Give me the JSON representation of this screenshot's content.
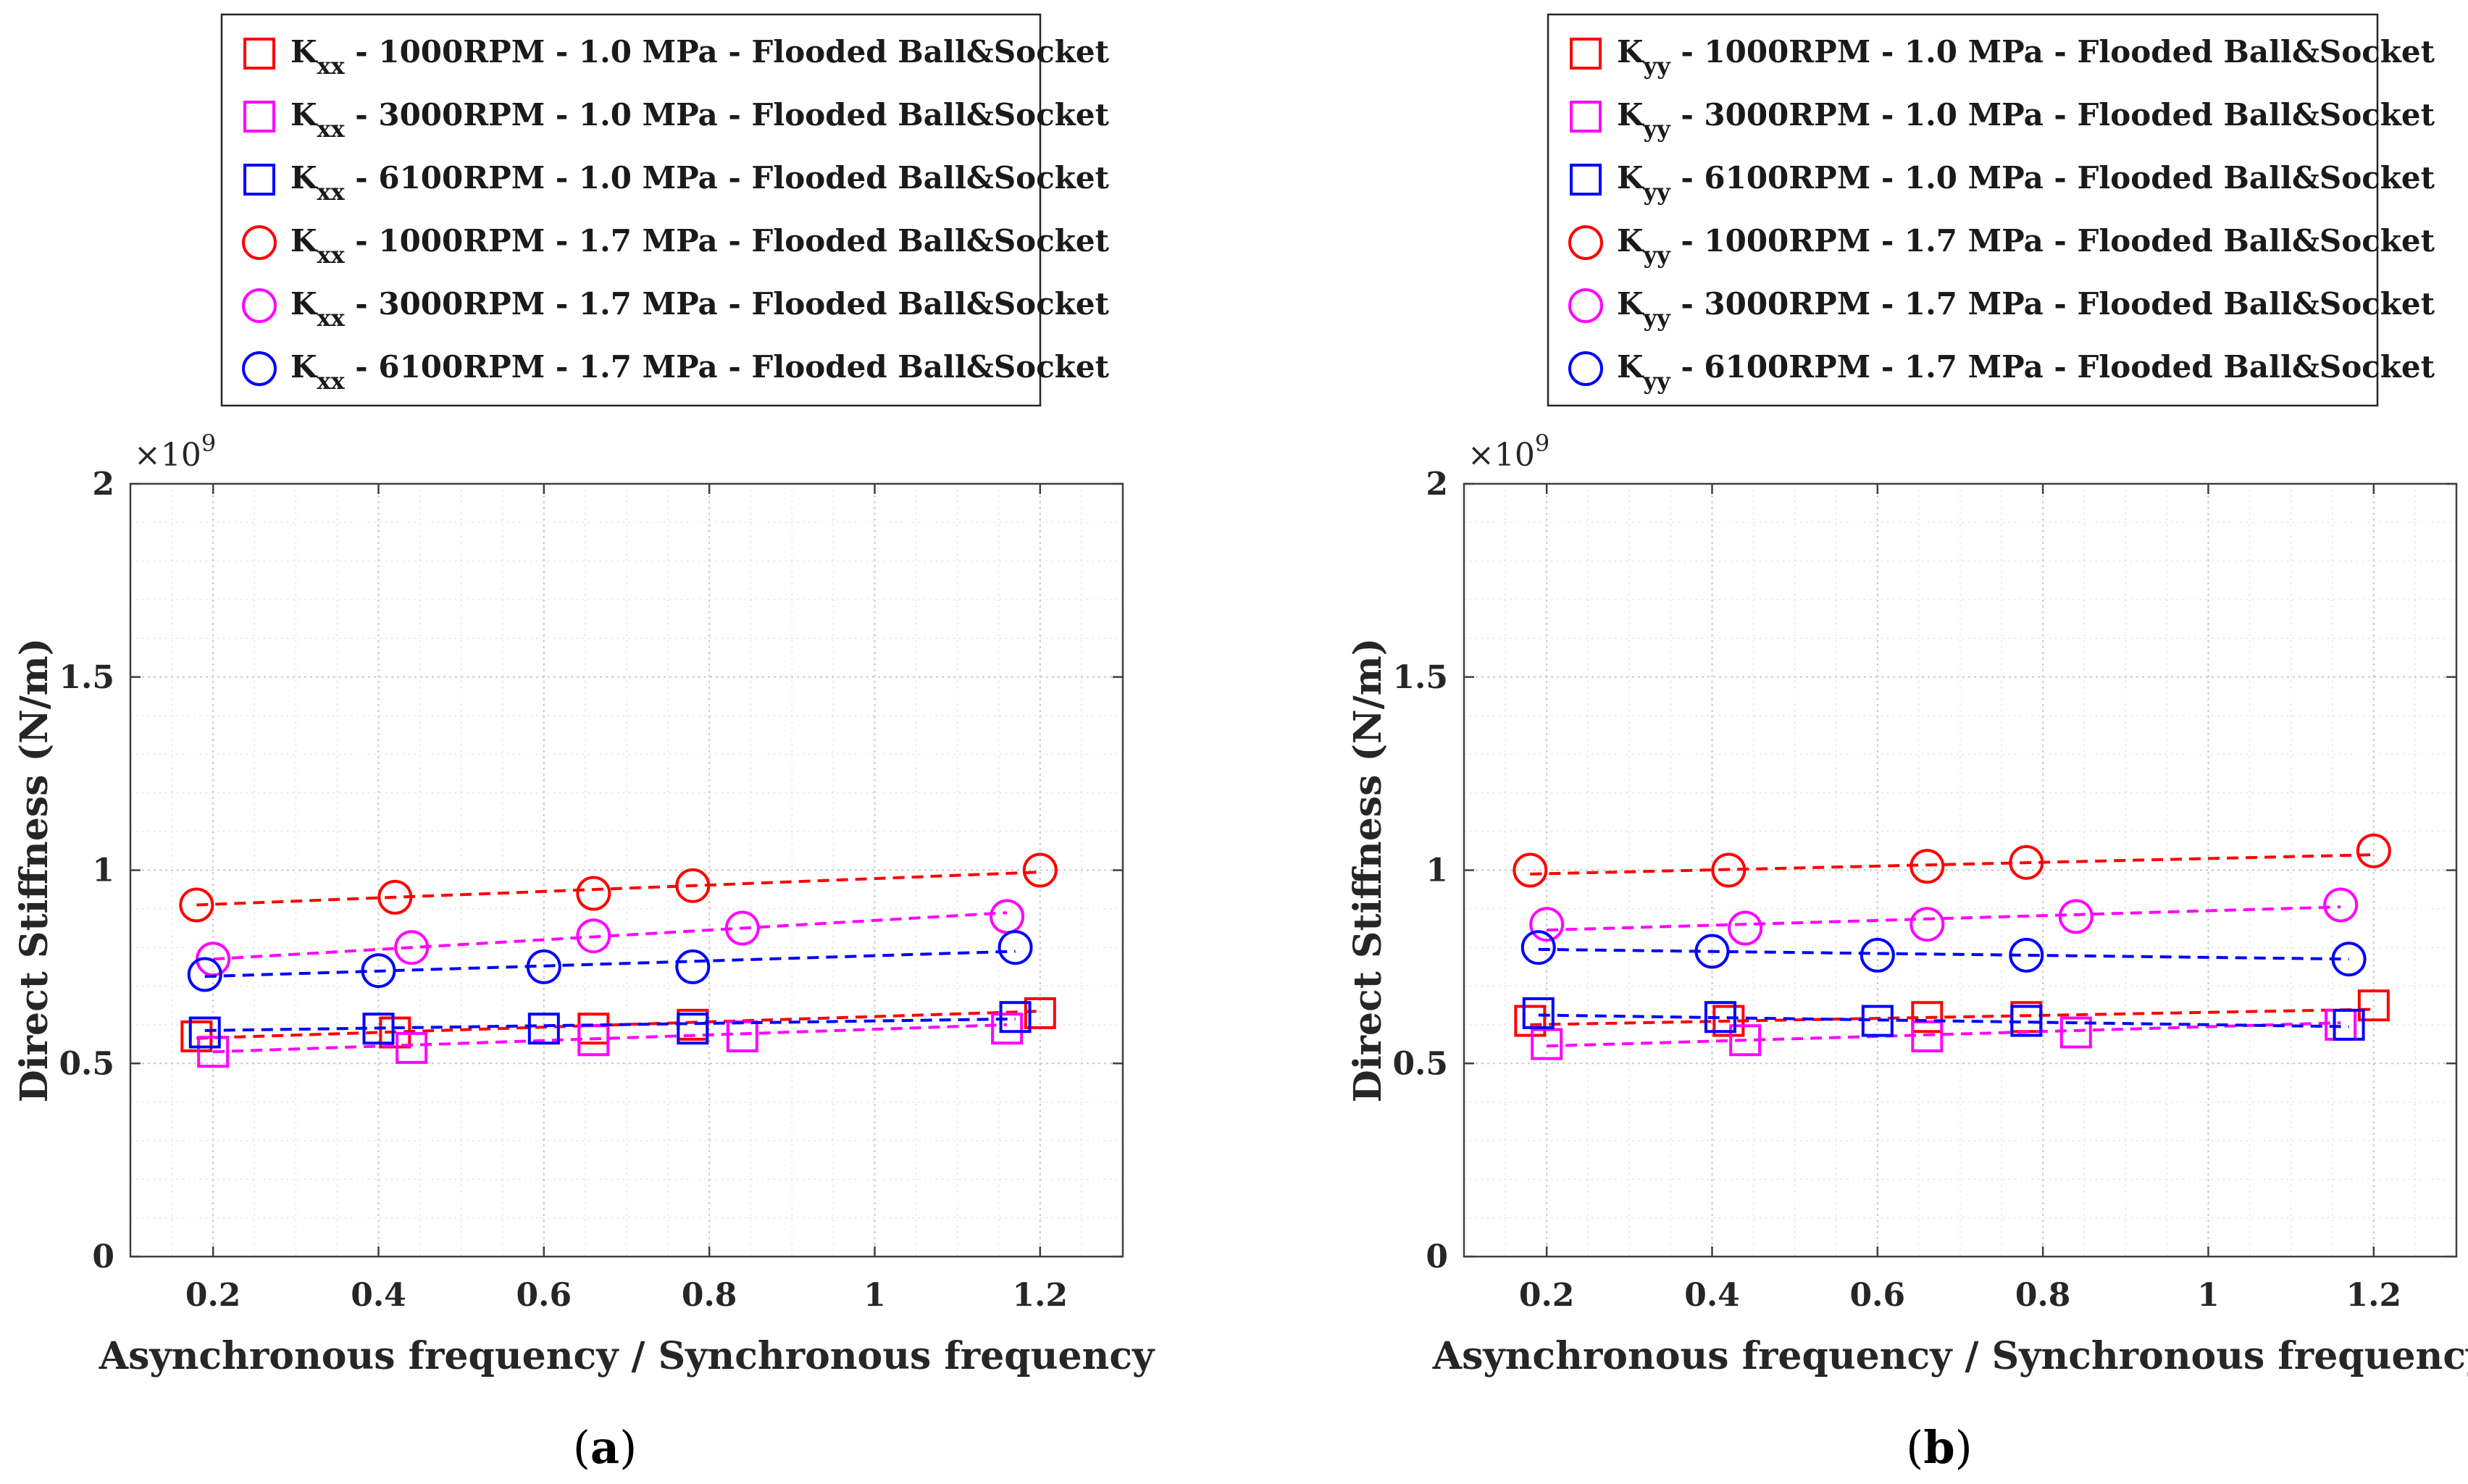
{
  "chart_data": [
    {
      "type": "scatter",
      "panel_label": "a",
      "multiplier": "×10",
      "multiplier_exp": "9",
      "xlabel": "Asynchronous frequency / Synchronous frequency",
      "ylabel": "Direct Stiffness (N/m)",
      "xlim": [
        0.1,
        1.3
      ],
      "ylim": [
        0,
        2
      ],
      "xticks": [
        {
          "v": 0.2,
          "label": "0.2"
        },
        {
          "v": 0.4,
          "label": "0.4"
        },
        {
          "v": 0.6,
          "label": "0.6"
        },
        {
          "v": 0.8,
          "label": "0.8"
        },
        {
          "v": 1.0,
          "label": "1"
        },
        {
          "v": 1.2,
          "label": "1.2"
        }
      ],
      "yticks": [
        {
          "v": 0,
          "label": "0"
        },
        {
          "v": 0.5,
          "label": "0.5"
        },
        {
          "v": 1.0,
          "label": "1"
        },
        {
          "v": 1.5,
          "label": "1.5"
        },
        {
          "v": 2.0,
          "label": "2"
        }
      ],
      "grid": true,
      "legend_position": "top",
      "series": [
        {
          "k": "K",
          "sub": "xx",
          "rest": " - 1000RPM - 1.0 MPa - Flooded Ball&Socket",
          "marker": "square",
          "color": "#ff0000",
          "x": [
            0.18,
            0.42,
            0.66,
            0.78,
            1.2
          ],
          "y": [
            0.57,
            0.58,
            0.59,
            0.6,
            0.63
          ],
          "fit": [
            0.565,
            0.635
          ]
        },
        {
          "k": "K",
          "sub": "xx",
          "rest": " - 3000RPM - 1.0 MPa - Flooded Ball&Socket",
          "marker": "square",
          "color": "#ff00ff",
          "x": [
            0.2,
            0.44,
            0.66,
            0.84,
            1.16
          ],
          "y": [
            0.53,
            0.54,
            0.56,
            0.57,
            0.59
          ],
          "fit": [
            0.53,
            0.6
          ]
        },
        {
          "k": "K",
          "sub": "xx",
          "rest": " - 6100RPM - 1.0 MPa - Flooded Ball&Socket",
          "marker": "square",
          "color": "#0000ff",
          "x": [
            0.19,
            0.4,
            0.6,
            0.78,
            1.17
          ],
          "y": [
            0.58,
            0.59,
            0.59,
            0.59,
            0.62
          ],
          "fit": [
            0.585,
            0.615
          ]
        },
        {
          "k": "K",
          "sub": "xx",
          "rest": " - 1000RPM - 1.7 MPa - Flooded Ball&Socket",
          "marker": "circle",
          "color": "#ff0000",
          "x": [
            0.18,
            0.42,
            0.66,
            0.78,
            1.2
          ],
          "y": [
            0.91,
            0.93,
            0.94,
            0.96,
            1.0
          ],
          "fit": [
            0.91,
            0.995
          ]
        },
        {
          "k": "K",
          "sub": "xx",
          "rest": " - 3000RPM - 1.7 MPa - Flooded Ball&Socket",
          "marker": "circle",
          "color": "#ff00ff",
          "x": [
            0.2,
            0.44,
            0.66,
            0.84,
            1.16
          ],
          "y": [
            0.77,
            0.8,
            0.83,
            0.85,
            0.88
          ],
          "fit": [
            0.77,
            0.89
          ]
        },
        {
          "k": "K",
          "sub": "xx",
          "rest": " - 6100RPM - 1.7 MPa - Flooded Ball&Socket",
          "marker": "circle",
          "color": "#0000ff",
          "x": [
            0.19,
            0.4,
            0.6,
            0.78,
            1.17
          ],
          "y": [
            0.73,
            0.74,
            0.75,
            0.75,
            0.8
          ],
          "fit": [
            0.725,
            0.79
          ]
        }
      ]
    },
    {
      "type": "scatter",
      "panel_label": "b",
      "multiplier": "×10",
      "multiplier_exp": "9",
      "xlabel": "Asynchronous frequency / Synchronous frequency",
      "ylabel": "Direct Stiffness (N/m)",
      "xlim": [
        0.1,
        1.3
      ],
      "ylim": [
        0,
        2
      ],
      "xticks": [
        {
          "v": 0.2,
          "label": "0.2"
        },
        {
          "v": 0.4,
          "label": "0.4"
        },
        {
          "v": 0.6,
          "label": "0.6"
        },
        {
          "v": 0.8,
          "label": "0.8"
        },
        {
          "v": 1.0,
          "label": "1"
        },
        {
          "v": 1.2,
          "label": "1.2"
        }
      ],
      "yticks": [
        {
          "v": 0,
          "label": "0"
        },
        {
          "v": 0.5,
          "label": "0.5"
        },
        {
          "v": 1.0,
          "label": "1"
        },
        {
          "v": 1.5,
          "label": "1.5"
        },
        {
          "v": 2.0,
          "label": "2"
        }
      ],
      "grid": true,
      "legend_position": "top",
      "series": [
        {
          "k": "K",
          "sub": "yy",
          "rest": " - 1000RPM - 1.0 MPa - Flooded Ball&Socket",
          "marker": "square",
          "color": "#ff0000",
          "x": [
            0.18,
            0.42,
            0.66,
            0.78,
            1.2
          ],
          "y": [
            0.61,
            0.61,
            0.62,
            0.62,
            0.65
          ],
          "fit": [
            0.6,
            0.64
          ]
        },
        {
          "k": "K",
          "sub": "yy",
          "rest": " - 3000RPM - 1.0 MPa - Flooded Ball&Socket",
          "marker": "square",
          "color": "#ff00ff",
          "x": [
            0.2,
            0.44,
            0.66,
            0.84,
            1.16
          ],
          "y": [
            0.55,
            0.56,
            0.57,
            0.58,
            0.6
          ],
          "fit": [
            0.545,
            0.605
          ]
        },
        {
          "k": "K",
          "sub": "yy",
          "rest": " - 6100RPM - 1.0 MPa - Flooded Ball&Socket",
          "marker": "square",
          "color": "#0000ff",
          "x": [
            0.19,
            0.41,
            0.6,
            0.78,
            1.17
          ],
          "y": [
            0.63,
            0.62,
            0.61,
            0.61,
            0.6
          ],
          "fit": [
            0.625,
            0.595
          ]
        },
        {
          "k": "K",
          "sub": "yy",
          "rest": " - 1000RPM - 1.7 MPa - Flooded Ball&Socket",
          "marker": "circle",
          "color": "#ff0000",
          "x": [
            0.18,
            0.42,
            0.66,
            0.78,
            1.2
          ],
          "y": [
            1.0,
            1.0,
            1.01,
            1.02,
            1.05
          ],
          "fit": [
            0.99,
            1.04
          ]
        },
        {
          "k": "K",
          "sub": "yy",
          "rest": " - 3000RPM - 1.7 MPa - Flooded Ball&Socket",
          "marker": "circle",
          "color": "#ff00ff",
          "x": [
            0.2,
            0.44,
            0.66,
            0.84,
            1.16
          ],
          "y": [
            0.86,
            0.85,
            0.86,
            0.88,
            0.91
          ],
          "fit": [
            0.845,
            0.905
          ]
        },
        {
          "k": "K",
          "sub": "yy",
          "rest": " - 6100RPM - 1.7 MPa - Flooded Ball&Socket",
          "marker": "circle",
          "color": "#0000ff",
          "x": [
            0.19,
            0.4,
            0.6,
            0.78,
            1.17
          ],
          "y": [
            0.8,
            0.79,
            0.78,
            0.78,
            0.77
          ],
          "fit": [
            0.795,
            0.77
          ]
        }
      ]
    }
  ]
}
